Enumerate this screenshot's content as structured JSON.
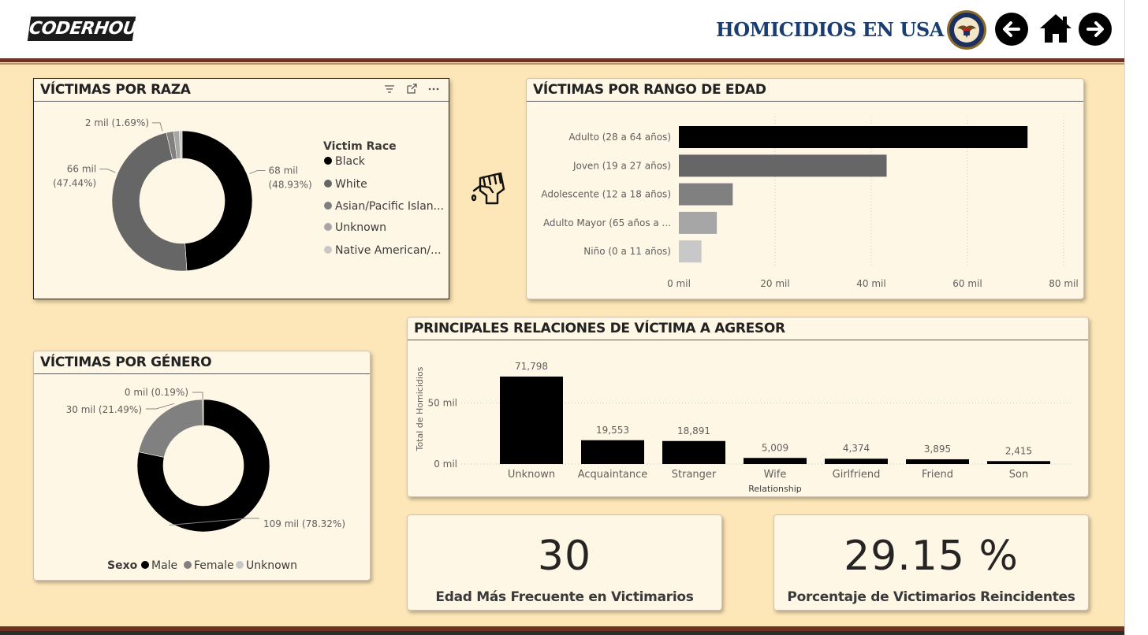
{
  "header": {
    "logo_text": "CODERHOUSE",
    "title": "HOMICIDIOS EN USA",
    "seal_icon": "doj-seal-icon",
    "back_icon": "arrow-left-icon",
    "home_icon": "home-icon",
    "forward_icon": "arrow-right-icon"
  },
  "colors": {
    "background": "#fde6b7",
    "card": "#fff7e6",
    "accent_rule": "#6b3320",
    "title_blue": "#1a3d72",
    "black": "#000000",
    "dark_gray": "#666666",
    "mid_gray": "#808080",
    "light_gray": "#a6a6a6",
    "lighter_gray": "#c8c8c8"
  },
  "race_card": {
    "title": "VÍCTIMAS POR RAZA",
    "legend_title": "Victim Race",
    "tools": [
      "filter-icon",
      "focus-mode-icon",
      "more-options-icon"
    ]
  },
  "age_card": {
    "title": "VÍCTIMAS POR RANGO DE EDAD"
  },
  "gender_card": {
    "title": "VÍCTIMAS POR GÉNERO",
    "legend_title": "Sexo"
  },
  "relation_card": {
    "title": "PRINCIPALES RELACIONES DE VÍCTIMA A AGRESOR"
  },
  "kpi_age": {
    "value": "30",
    "label": "Edad Más Frecuente en Victimarios"
  },
  "kpi_repeat": {
    "value": "29.15 %",
    "label": "Porcentaje de Victimarios Reincidentes"
  },
  "decor": {
    "icon": "fist-icon"
  },
  "chart_data": [
    {
      "id": "race",
      "type": "pie",
      "donut": true,
      "title": "VÍCTIMAS POR RAZA",
      "legend_title": "Victim Race",
      "legend_position": "right",
      "slices": [
        {
          "label": "Black",
          "share": 48.93,
          "data_label": "68 mil\n(48.93%)",
          "color": "#000000"
        },
        {
          "label": "White",
          "share": 47.44,
          "data_label": "66 mil\n(47.44%)",
          "color": "#666666"
        },
        {
          "label": "Asian/Pacific Islan...",
          "share": 1.69,
          "data_label": "2 mil (1.69%)",
          "color": "#808080"
        },
        {
          "label": "Unknown",
          "share": 1.3,
          "data_label": "",
          "color": "#a6a6a6"
        },
        {
          "label": "Native American/...",
          "share": 0.64,
          "data_label": "",
          "color": "#c8c8c8"
        }
      ]
    },
    {
      "id": "age",
      "type": "bar",
      "orientation": "horizontal",
      "title": "VÍCTIMAS POR RANGO DE EDAD",
      "categories": [
        "Adulto (28 a 64 años)",
        "Joven (19 a 27 años)",
        "Adolescente (12 a 18 años)",
        "Adulto Mayor (65 años a ...",
        "Niño (0 a 11 años)"
      ],
      "values": [
        72500,
        43200,
        11200,
        7900,
        4700
      ],
      "colors": [
        "#000000",
        "#666666",
        "#808080",
        "#a6a6a6",
        "#c8c8c8"
      ],
      "xlim": [
        0,
        80000
      ],
      "ticks": [
        0,
        20000,
        40000,
        60000,
        80000
      ],
      "tick_labels": [
        "0 mil",
        "20 mil",
        "40 mil",
        "60 mil",
        "80 mil"
      ],
      "grid": true
    },
    {
      "id": "gender",
      "type": "pie",
      "donut": true,
      "title": "VÍCTIMAS POR GÉNERO",
      "legend_title": "Sexo",
      "legend_position": "bottom",
      "slices": [
        {
          "label": "Male",
          "share": 78.32,
          "data_label": "109 mil (78.32%)",
          "color": "#000000"
        },
        {
          "label": "Female",
          "share": 21.49,
          "data_label": "30 mil (21.49%)",
          "color": "#808080"
        },
        {
          "label": "Unknown",
          "share": 0.19,
          "data_label": "0 mil (0.19%)",
          "color": "#c8c8c8"
        }
      ]
    },
    {
      "id": "relation",
      "type": "bar",
      "orientation": "vertical",
      "title": "PRINCIPALES RELACIONES DE VÍCTIMA A AGRESOR",
      "xlabel": "Relationship",
      "ylabel": "Total de Homicidios",
      "categories": [
        "Unknown",
        "Acquaintance",
        "Stranger",
        "Wife",
        "Girlfriend",
        "Friend",
        "Son"
      ],
      "values": [
        71798,
        19553,
        18891,
        5009,
        4374,
        3895,
        2415
      ],
      "value_labels": [
        "71,798",
        "19,553",
        "18,891",
        "5,009",
        "4,374",
        "3,895",
        "2,415"
      ],
      "ylim": [
        0,
        75000
      ],
      "ticks": [
        0,
        50000
      ],
      "tick_labels": [
        "0 mil",
        "50 mil"
      ],
      "grid": true,
      "color": "#000000"
    }
  ]
}
